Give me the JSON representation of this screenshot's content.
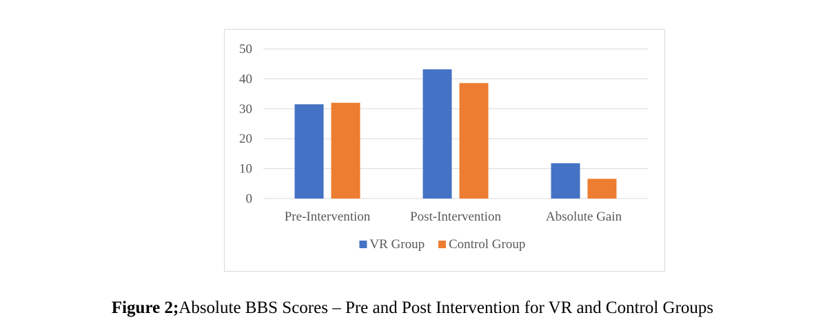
{
  "chart_data": {
    "type": "bar",
    "categories": [
      "Pre-Intervention",
      "Post-Intervention",
      "Absolute Gain"
    ],
    "series": [
      {
        "name": "VR Group",
        "values": [
          31.5,
          43.2,
          11.8
        ],
        "color": "#4472C4"
      },
      {
        "name": "Control Group",
        "values": [
          32.0,
          38.6,
          6.6
        ],
        "color": "#ED7D31"
      }
    ],
    "yticks": [
      0,
      10,
      20,
      30,
      40,
      50
    ],
    "ylim": [
      0,
      50
    ],
    "grid": true,
    "legend_position": "bottom"
  },
  "caption": {
    "label": "Figure 2;",
    "text": "Absolute BBS Scores – Pre and Post Intervention for VR and Control Groups"
  }
}
